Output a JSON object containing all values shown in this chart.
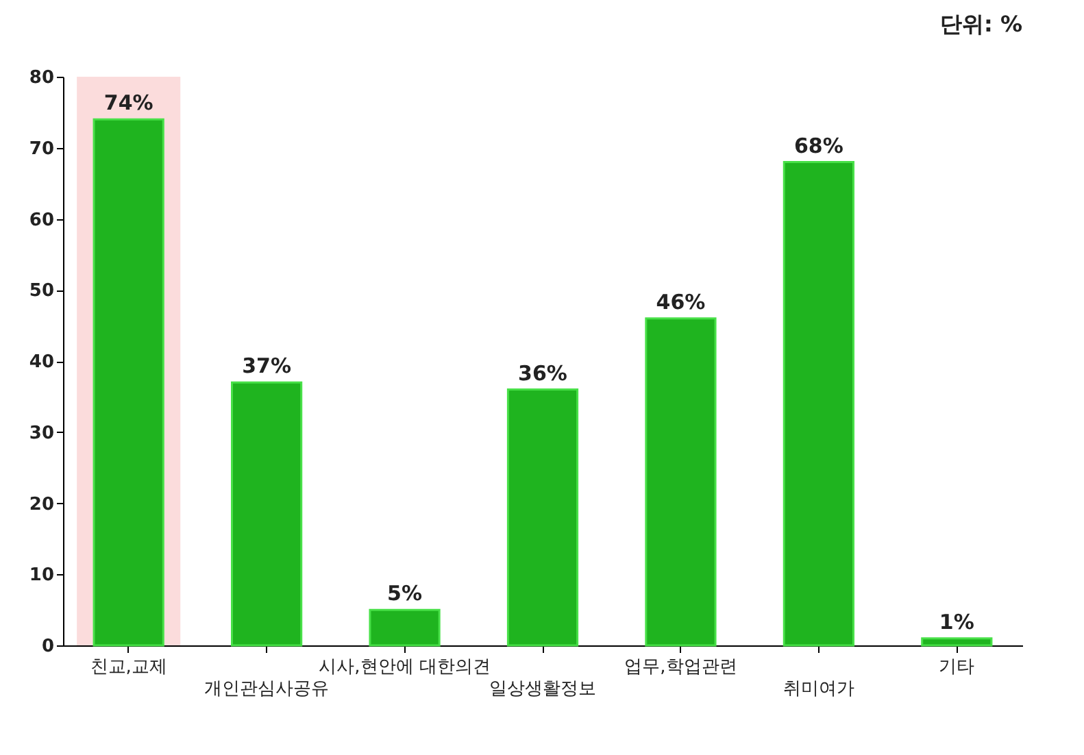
{
  "chart_data": {
    "type": "bar",
    "annotations": [
      "단위: %"
    ],
    "categories": [
      "친교,교제",
      "개인관심사공유",
      "시사,현안에 대한의견",
      "일상생활정보",
      "업무,학업관련",
      "취미여가",
      "기타"
    ],
    "values": [
      74,
      37,
      5,
      36,
      46,
      68,
      1
    ],
    "value_labels": [
      "74%",
      "37%",
      "5%",
      "36%",
      "46%",
      "68%",
      "1%"
    ],
    "color": "#1fb41f",
    "ylim": [
      0,
      80
    ],
    "yticks": [
      0,
      10,
      20,
      30,
      40,
      50,
      60,
      70,
      80
    ],
    "grid": false,
    "bands": [
      {
        "axis": "x",
        "from": "친교,교제",
        "to": "친교,교제",
        "color": "#fbdcdc"
      }
    ]
  }
}
